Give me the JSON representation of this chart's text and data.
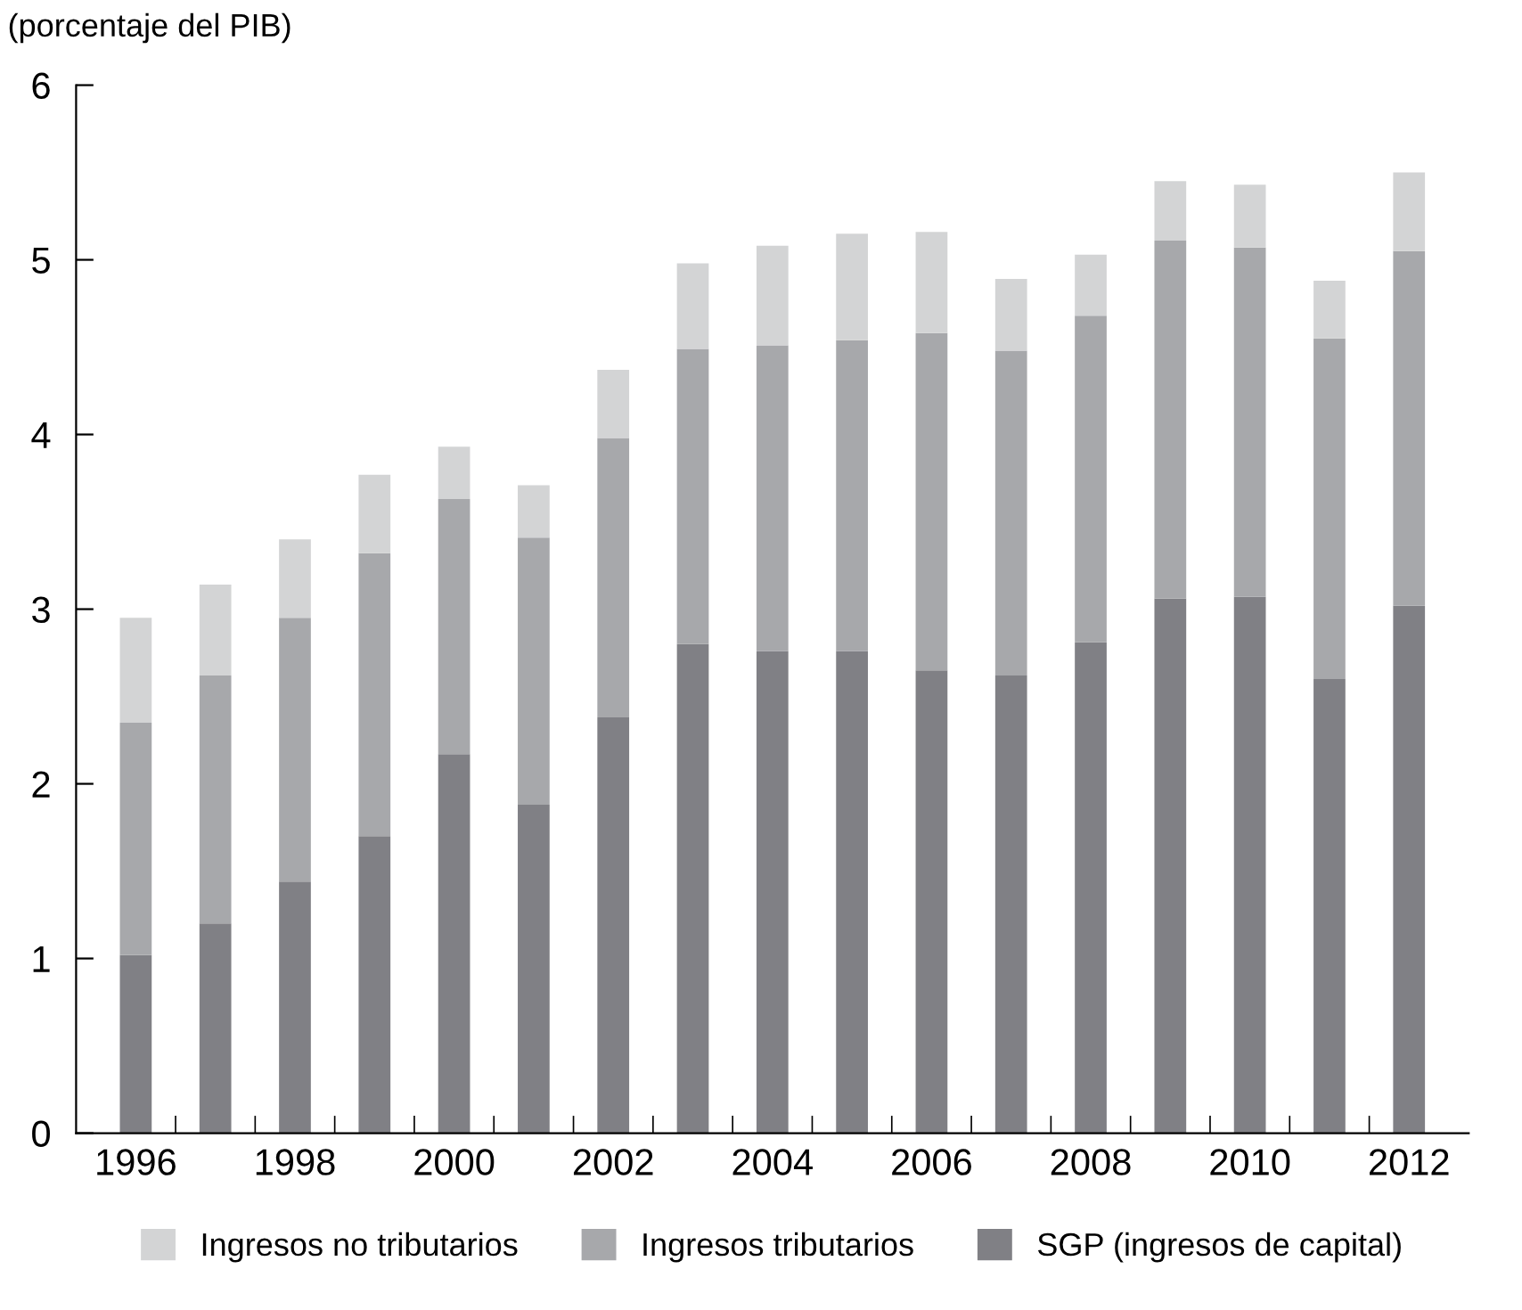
{
  "chart_data": {
    "type": "bar",
    "stacked": true,
    "ylabel": "(porcentaje del PIB)",
    "categories": [
      "1996",
      null,
      "1998",
      null,
      "2000",
      null,
      "2002",
      null,
      "2004",
      null,
      "2006",
      null,
      "2008",
      null,
      "2010",
      null,
      "2012"
    ],
    "series": [
      {
        "name": "SGP (ingresos de capital)",
        "color": "#808085",
        "values": [
          1.02,
          1.2,
          1.44,
          1.7,
          2.17,
          1.88,
          2.38,
          2.8,
          2.76,
          2.76,
          2.65,
          2.62,
          2.81,
          3.06,
          3.07,
          2.6,
          3.02
        ]
      },
      {
        "name": "Ingresos tributarios",
        "color": "#a7a8ab",
        "values": [
          1.33,
          1.42,
          1.51,
          1.62,
          1.46,
          1.53,
          1.6,
          1.69,
          1.75,
          1.78,
          1.93,
          1.86,
          1.87,
          2.05,
          2.0,
          1.95,
          2.03
        ]
      },
      {
        "name": "Ingresos no tributarios",
        "color": "#d3d4d5",
        "values": [
          0.6,
          0.52,
          0.45,
          0.45,
          0.3,
          0.3,
          0.39,
          0.49,
          0.57,
          0.61,
          0.58,
          0.41,
          0.35,
          0.34,
          0.36,
          0.33,
          0.45
        ]
      }
    ],
    "ylim": [
      0,
      6
    ],
    "yticks": [
      0,
      1,
      2,
      3,
      4,
      5,
      6
    ],
    "grid": false,
    "legend": "bottom"
  }
}
